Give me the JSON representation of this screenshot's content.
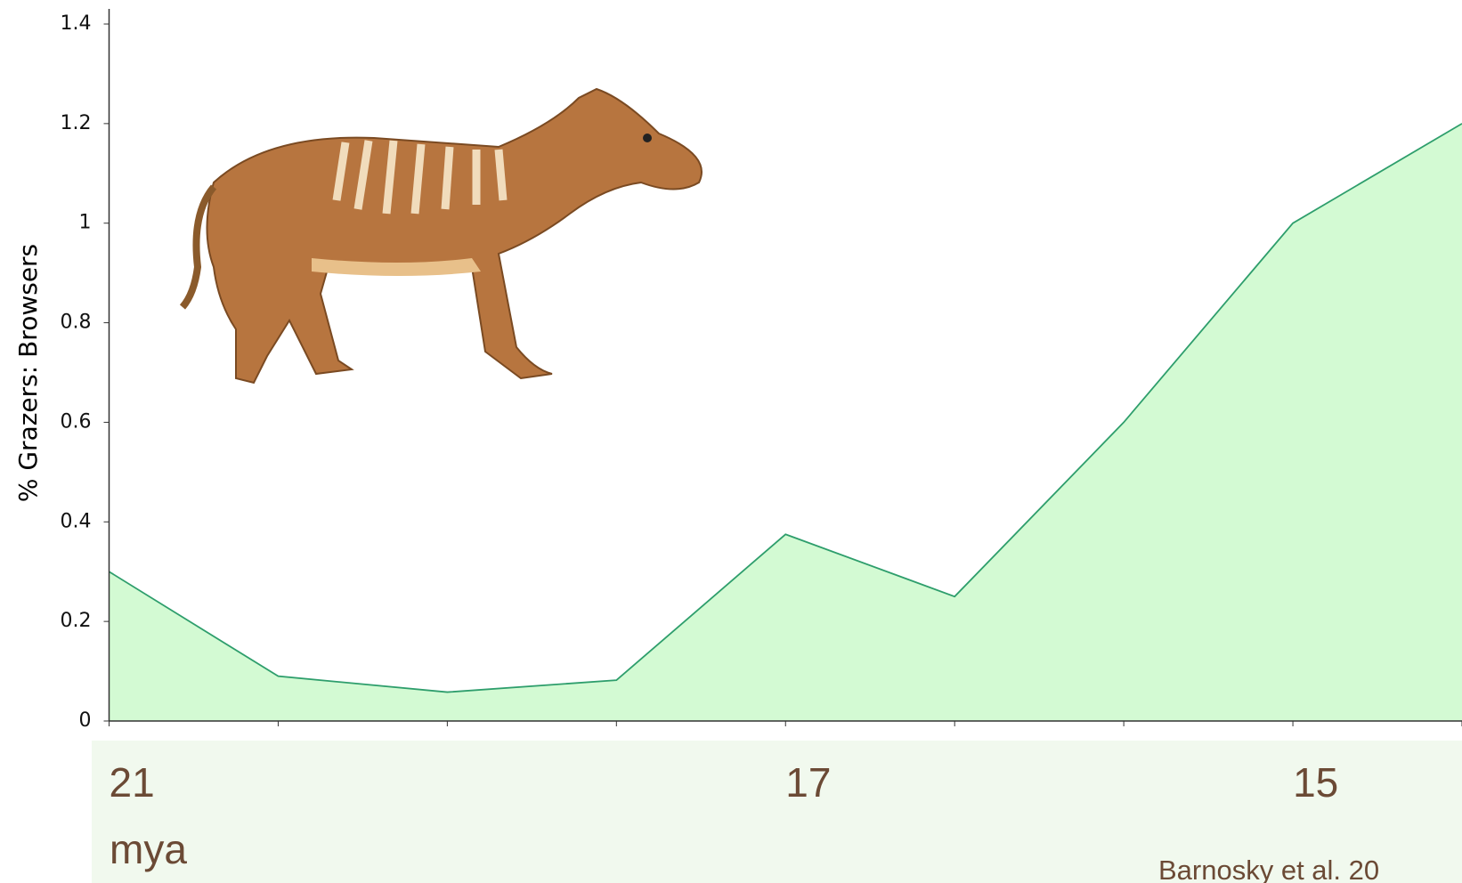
{
  "chart_data": {
    "type": "area",
    "y_label": "% Grazers: Browsers",
    "categories": [
      "21",
      null,
      null,
      null,
      "17",
      null,
      null,
      "15",
      null
    ],
    "x_unit": "mya",
    "source": "Barnosky et al. 20",
    "values": [
      0.3,
      0.09,
      0.058,
      0.082,
      0.375,
      0.25,
      0.6,
      1.0,
      1.2
    ],
    "color": "#d3fad3",
    "line_color": "#2e9e6c",
    "ylim": [
      0,
      1.4
    ],
    "yticks": [
      0,
      0.2,
      0.4,
      0.6,
      0.8,
      1,
      1.2,
      1.4
    ],
    "grid": false
  }
}
